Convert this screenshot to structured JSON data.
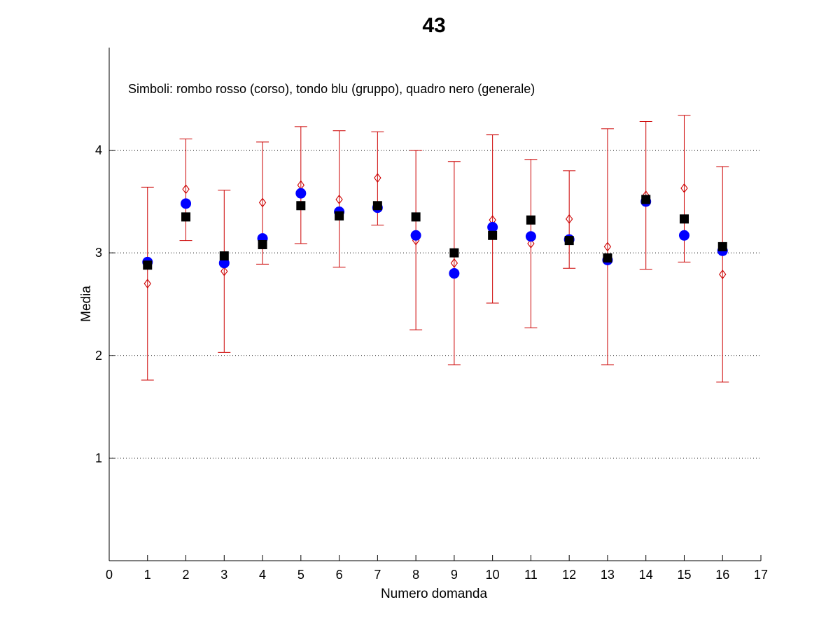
{
  "chart_data": {
    "type": "scatter",
    "title": "43",
    "xlabel": "Numero domanda",
    "ylabel": "Media",
    "annotation": "Simboli: rombo rosso (corso), tondo blu (gruppo), quadro nero (generale)",
    "xlim": [
      0,
      17
    ],
    "ylim": [
      0,
      5
    ],
    "xticks": [
      0,
      1,
      2,
      3,
      4,
      5,
      6,
      7,
      8,
      9,
      10,
      11,
      12,
      13,
      14,
      15,
      16,
      17
    ],
    "yticks": [
      1,
      2,
      3,
      4
    ],
    "grid_y": true,
    "x": [
      1,
      2,
      3,
      4,
      5,
      6,
      7,
      8,
      9,
      10,
      11,
      12,
      13,
      14,
      15,
      16
    ],
    "series": [
      {
        "marker": "diamond",
        "color": "#cc0000",
        "values": [
          2.7,
          3.62,
          2.82,
          3.49,
          3.66,
          3.52,
          3.73,
          3.12,
          2.9,
          3.32,
          3.09,
          3.33,
          3.06,
          3.56,
          3.63,
          2.79
        ],
        "error_low": [
          1.76,
          3.12,
          2.03,
          2.89,
          3.09,
          2.86,
          3.27,
          2.25,
          1.91,
          2.51,
          2.27,
          2.85,
          1.91,
          2.84,
          2.91,
          1.74
        ],
        "error_high": [
          3.64,
          4.11,
          3.61,
          4.08,
          4.23,
          4.19,
          4.18,
          4.0,
          3.89,
          4.15,
          3.91,
          3.8,
          4.21,
          4.28,
          4.34,
          3.84
        ]
      },
      {
        "marker": "circle",
        "color": "#0000ff",
        "values": [
          2.91,
          3.48,
          2.9,
          3.14,
          3.58,
          3.4,
          3.44,
          3.17,
          2.8,
          3.25,
          3.16,
          3.13,
          2.93,
          3.5,
          3.17,
          3.02
        ]
      },
      {
        "marker": "square",
        "color": "#000000",
        "values": [
          2.88,
          3.35,
          2.97,
          3.08,
          3.46,
          3.36,
          3.46,
          3.35,
          3.0,
          3.17,
          3.32,
          3.12,
          2.95,
          3.52,
          3.33,
          3.06
        ]
      }
    ]
  }
}
